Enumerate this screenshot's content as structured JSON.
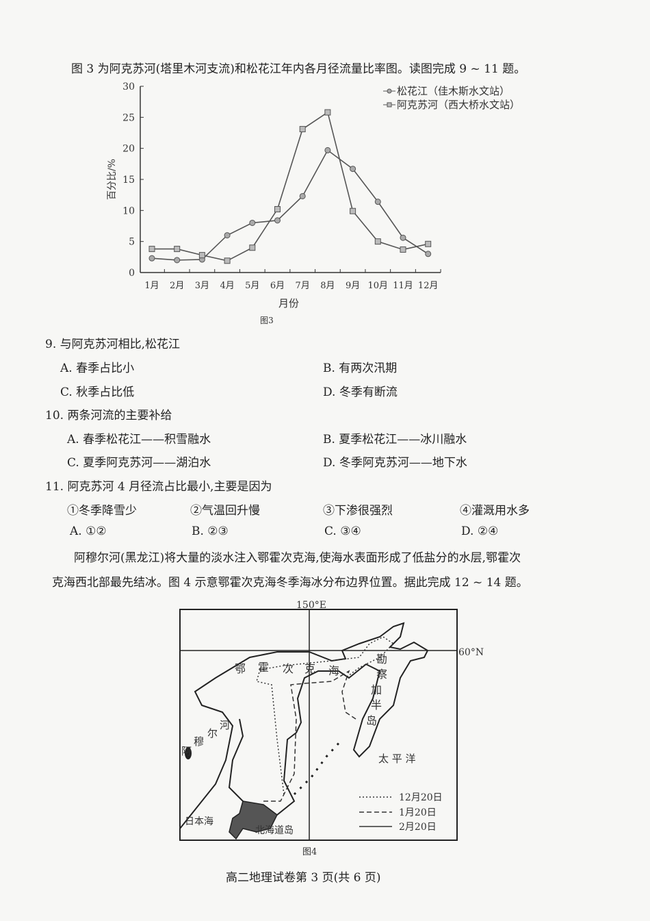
{
  "intro1": "图 3 为阿克苏河(塔里木河支流)和松花江年内各月径流量比率图。读图完成 9 ~ 11 题。",
  "chart_data": {
    "type": "line",
    "caption": "图3",
    "xlabel": "月份",
    "ylabel": "百分比/%",
    "categories": [
      "1月",
      "2月",
      "3月",
      "4月",
      "5月",
      "6月",
      "7月",
      "8月",
      "9月",
      "10月",
      "11月",
      "12月"
    ],
    "yticks": [
      0,
      5,
      10,
      15,
      20,
      25,
      30
    ],
    "ylim": [
      0,
      30
    ],
    "grid": false,
    "legend_position": "top-right",
    "series": [
      {
        "name": "松花江（佳木斯水文站）",
        "marker": "circle",
        "values": [
          2.3,
          2.0,
          2.1,
          6.0,
          8.0,
          8.4,
          12.3,
          19.7,
          16.7,
          11.4,
          5.6,
          3.0
        ]
      },
      {
        "name": "阿克苏河（西大桥水文站）",
        "marker": "square",
        "values": [
          3.8,
          3.8,
          2.8,
          1.9,
          4.0,
          10.2,
          23.1,
          25.8,
          9.9,
          5.0,
          3.7,
          4.6
        ]
      }
    ]
  },
  "questions": [
    {
      "stem": "9. 与阿克苏河相比,松花江",
      "options": [
        "A. 春季占比小",
        "B. 有两次汛期",
        "C. 秋季占比低",
        "D. 冬季有断流"
      ]
    },
    {
      "stem": "10. 两条河流的主要补给",
      "options": [
        "A. 春季松花江——积雪融水",
        "B. 夏季松花江——冰川融水",
        "C. 夏季阿克苏河——湖泊水",
        "D. 冬季阿克苏河——地下水"
      ]
    },
    {
      "stem": "11. 阿克苏河 4 月径流占比最小,主要是因为",
      "items": [
        "①冬季降雪少",
        "②气温回升慢",
        "③下渗很强烈",
        "④灌溉用水多"
      ],
      "options": [
        "A. ①②",
        "B. ②③",
        "C. ③④",
        "D. ②④"
      ]
    }
  ],
  "intro2_line1": "阿穆尔河(黑龙江)将大量的淡水注入鄂霍次克海,使海水表面形成了低盐分的水层,鄂霍次",
  "intro2_line2": "克海西北部最先结冰。图 4 示意鄂霍次克海冬季海冰分布边界位置。据此完成 12 ~ 14 题。",
  "map": {
    "caption": "图4",
    "lon_label": "150°E",
    "lat_label": "60°N",
    "sea_chars": [
      "鄂",
      "霍",
      "次",
      "克",
      "海"
    ],
    "peninsula_chars": [
      "勘",
      "察",
      "加",
      "半",
      "岛"
    ],
    "river_chars": [
      "阿",
      "穆",
      "尔",
      "河"
    ],
    "pacific": "太 平 洋",
    "japan_sea": "日本海",
    "hokkaido": "北海道岛",
    "legend": [
      {
        "label": "12月20日",
        "style": "dotted"
      },
      {
        "label": "1月20日",
        "style": "dashed"
      },
      {
        "label": "2月20日",
        "style": "solid"
      }
    ]
  },
  "footer": "高二地理试卷第 3 页(共 6 页)"
}
